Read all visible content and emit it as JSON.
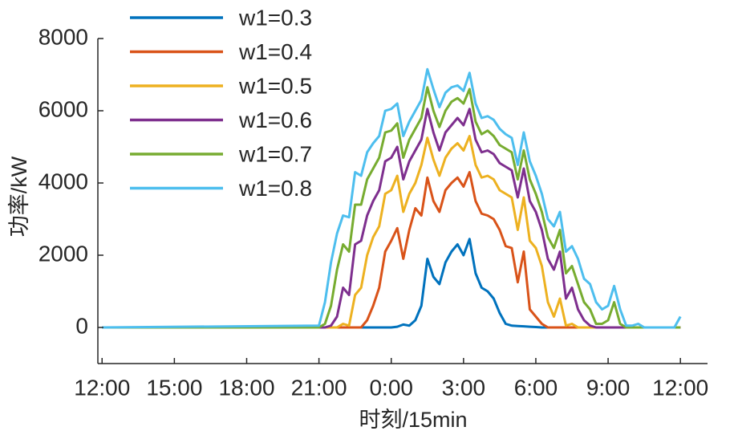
{
  "chart_data": {
    "type": "line",
    "xlabel": "时刻/15min",
    "ylabel": "功率/kW",
    "x": [
      0,
      36,
      37,
      38,
      39,
      40,
      41,
      42,
      43,
      44,
      45,
      46,
      47,
      48,
      49,
      50,
      51,
      52,
      53,
      54,
      55,
      56,
      57,
      58,
      59,
      60,
      61,
      62,
      63,
      64,
      65,
      66,
      67,
      68,
      69,
      70,
      71,
      72,
      73,
      74,
      75,
      76,
      77,
      78,
      79,
      80,
      81,
      82,
      83,
      84,
      85,
      86,
      87,
      88,
      89,
      90,
      91,
      92,
      93,
      94,
      95,
      96
    ],
    "xlim": [
      -0.7,
      100.5
    ],
    "xticks": [
      {
        "value": 0,
        "label": "12:00"
      },
      {
        "value": 12,
        "label": "15:00"
      },
      {
        "value": 24,
        "label": "18:00"
      },
      {
        "value": 36,
        "label": "21:00"
      },
      {
        "value": 48,
        "label": "0:00"
      },
      {
        "value": 60,
        "label": "3:00"
      },
      {
        "value": 72,
        "label": "6:00"
      },
      {
        "value": 84,
        "label": "9:00"
      },
      {
        "value": 96,
        "label": "12:00"
      }
    ],
    "ylim": [
      -1000,
      8000
    ],
    "yticks": [
      0,
      2000,
      4000,
      6000,
      8000
    ],
    "grid": false,
    "legend": "upper-left",
    "series": [
      {
        "name": "w1=0.3",
        "color": "#0072BD",
        "values": [
          0,
          0,
          0,
          0,
          0,
          0,
          0,
          0,
          0,
          0,
          0,
          0,
          0,
          0,
          20,
          80,
          50,
          200,
          600,
          1900,
          1400,
          1200,
          1800,
          2100,
          2300,
          2000,
          2450,
          1500,
          1100,
          1000,
          800,
          400,
          100,
          50,
          40,
          30,
          20,
          10,
          0,
          0,
          0,
          0,
          0,
          0,
          0,
          0,
          0,
          0,
          0,
          0,
          0,
          0,
          0,
          0,
          0,
          0,
          0,
          0,
          0,
          0,
          0,
          0
        ]
      },
      {
        "name": "w1=0.4",
        "color": "#D95319",
        "values": [
          0,
          0,
          0,
          0,
          0,
          0,
          0,
          0,
          0,
          200,
          600,
          1100,
          2100,
          2400,
          2750,
          1900,
          2700,
          3300,
          3100,
          4150,
          3500,
          3200,
          3800,
          4000,
          4150,
          3900,
          4300,
          3500,
          3150,
          3100,
          3000,
          2700,
          2250,
          2200,
          1250,
          2100,
          500,
          300,
          100,
          0,
          0,
          0,
          0,
          0,
          0,
          0,
          0,
          0,
          0,
          0,
          0,
          0,
          0,
          0,
          0,
          0,
          0,
          0,
          0,
          0,
          0,
          0
        ]
      },
      {
        "name": "w1=0.5",
        "color": "#EDB120",
        "values": [
          0,
          0,
          0,
          0,
          0,
          100,
          50,
          900,
          1100,
          2000,
          2500,
          2800,
          3700,
          3800,
          4200,
          3200,
          3700,
          4000,
          4500,
          5250,
          4650,
          4200,
          4700,
          4950,
          5100,
          4900,
          5300,
          4500,
          4150,
          4200,
          4100,
          3800,
          3700,
          3600,
          2700,
          3600,
          2400,
          2200,
          1700,
          700,
          300,
          800,
          50,
          100,
          0,
          0,
          0,
          0,
          0,
          0,
          0,
          0,
          0,
          0,
          0,
          0,
          0,
          0,
          0,
          0,
          0,
          0
        ]
      },
      {
        "name": "w1=0.6",
        "color": "#7E2F8E",
        "values": [
          0,
          0,
          0,
          50,
          300,
          1100,
          900,
          2300,
          2400,
          3100,
          3500,
          3800,
          4600,
          4700,
          5000,
          4100,
          4600,
          4900,
          5200,
          6050,
          5400,
          4900,
          5400,
          5600,
          5800,
          5600,
          6050,
          5200,
          4850,
          4900,
          4800,
          4550,
          4450,
          4350,
          3600,
          4400,
          3500,
          3200,
          2700,
          1900,
          1600,
          2100,
          800,
          1100,
          500,
          200,
          50,
          0,
          0,
          0,
          0,
          0,
          0,
          0,
          0,
          0,
          0,
          0,
          0,
          0,
          0,
          0
        ]
      },
      {
        "name": "w1=0.7",
        "color": "#77AC30",
        "values": [
          0,
          0,
          100,
          600,
          1600,
          2300,
          2100,
          3400,
          3400,
          4100,
          4400,
          4700,
          5400,
          5450,
          5650,
          4700,
          5200,
          5500,
          5800,
          6650,
          6000,
          5550,
          6000,
          6250,
          6350,
          6200,
          6600,
          5700,
          5350,
          5450,
          5300,
          5050,
          4950,
          4850,
          4100,
          4900,
          4100,
          3700,
          3200,
          2500,
          2200,
          2700,
          1500,
          1700,
          1200,
          700,
          500,
          100,
          100,
          200,
          700,
          100,
          0,
          0,
          0,
          0,
          0,
          0,
          0,
          0,
          0,
          0
        ]
      },
      {
        "name": "w1=0.8",
        "color": "#4DBEEE",
        "values": [
          0,
          50,
          700,
          1800,
          2600,
          3100,
          3050,
          4300,
          4200,
          4850,
          5100,
          5300,
          6000,
          6050,
          6200,
          5300,
          5700,
          6000,
          6300,
          7150,
          6600,
          6100,
          6500,
          6650,
          6700,
          6550,
          7050,
          6200,
          5800,
          5850,
          5750,
          5500,
          5350,
          5250,
          4500,
          5400,
          4600,
          4200,
          3700,
          3000,
          2800,
          3200,
          2100,
          2250,
          1900,
          1350,
          1200,
          700,
          500,
          600,
          1150,
          500,
          50,
          50,
          100,
          0,
          0,
          0,
          0,
          0,
          0,
          300
        ]
      }
    ]
  }
}
